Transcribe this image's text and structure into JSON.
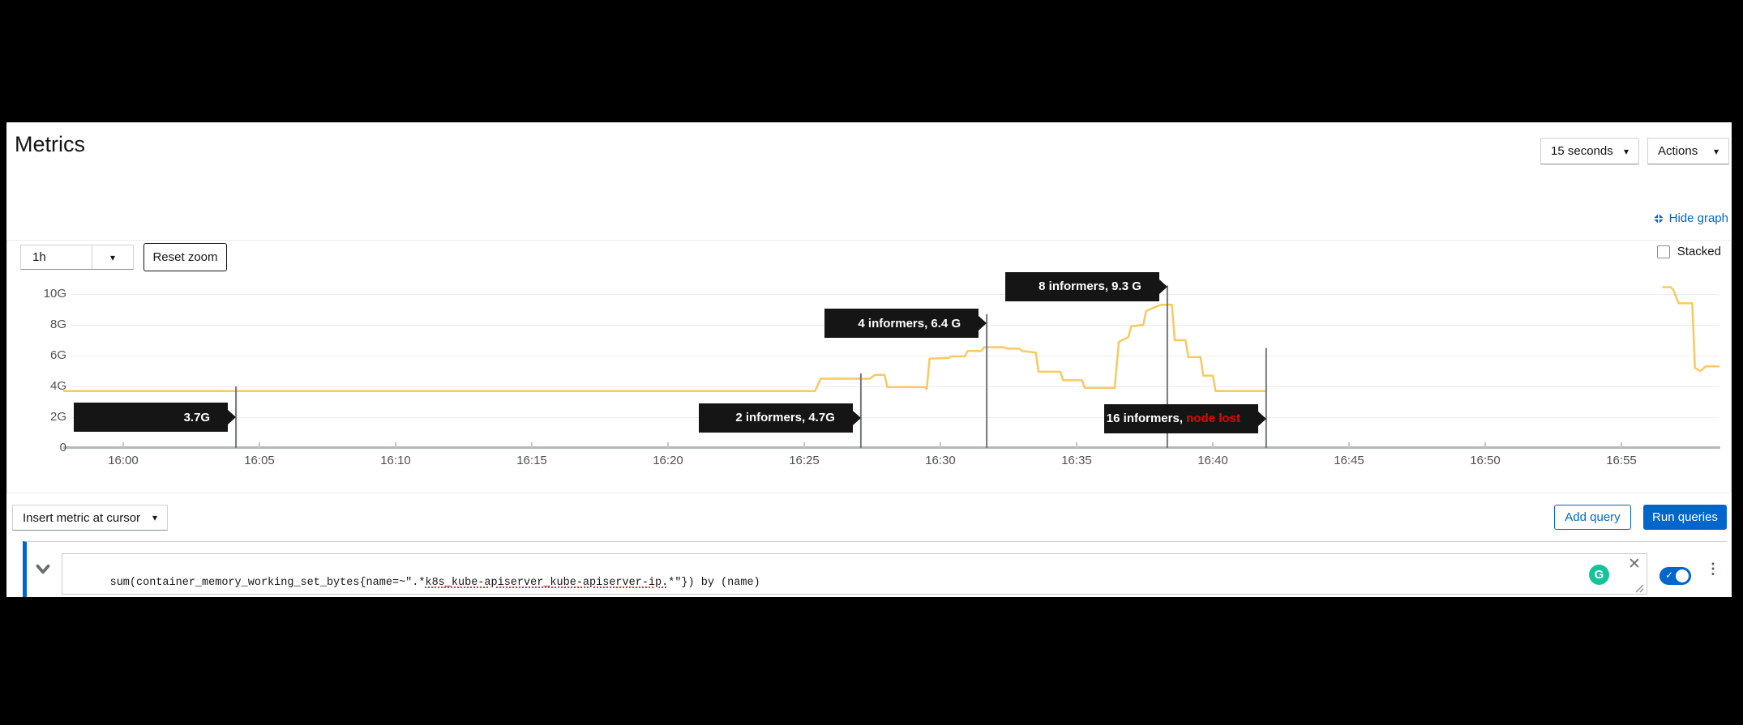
{
  "header": {
    "title": "Metrics",
    "interval_select": "15 seconds",
    "actions_label": "Actions"
  },
  "graph_controls": {
    "hide_graph": "Hide graph",
    "timespan": "1h",
    "reset_zoom": "Reset zoom",
    "stacked_label": "Stacked"
  },
  "chart_data": {
    "type": "line",
    "title": "",
    "xlabel": "",
    "ylabel": "",
    "x_unit": "time (HH:MM)",
    "y_unit": "memory working set (G)",
    "ylim": [
      0,
      11
    ],
    "grid": true,
    "legend": false,
    "x_ticks": [
      "16:00",
      "16:05",
      "16:10",
      "16:15",
      "16:20",
      "16:25",
      "16:30",
      "16:35",
      "16:40",
      "16:45",
      "16:50",
      "16:55"
    ],
    "y_ticks": [
      "0",
      "2G",
      "4G",
      "6G",
      "8G",
      "10G"
    ],
    "series": [
      {
        "name": "sum(container_memory_working_set_bytes) by (name)",
        "color": "#f4c145",
        "note": "t = minutes after 16:00, v = gigabytes; gap between segments = node lost",
        "segments": [
          [
            [
              -2.2,
              3.7
            ],
            [
              25.4,
              3.7
            ],
            [
              25.6,
              4.5
            ],
            [
              27.4,
              4.5
            ],
            [
              27.6,
              4.75
            ],
            [
              27.95,
              4.75
            ],
            [
              28.05,
              3.95
            ],
            [
              29.4,
              3.95
            ],
            [
              29.5,
              3.85
            ],
            [
              29.6,
              5.8
            ],
            [
              30.3,
              5.85
            ],
            [
              30.4,
              5.95
            ],
            [
              30.9,
              5.95
            ],
            [
              31.0,
              6.3
            ],
            [
              31.5,
              6.3
            ],
            [
              31.6,
              6.55
            ],
            [
              32.3,
              6.55
            ],
            [
              32.45,
              6.45
            ],
            [
              32.9,
              6.45
            ],
            [
              33.0,
              6.3
            ],
            [
              33.5,
              6.2
            ],
            [
              33.6,
              4.95
            ],
            [
              34.4,
              4.95
            ],
            [
              34.5,
              4.4
            ],
            [
              35.2,
              4.4
            ],
            [
              35.3,
              3.9
            ],
            [
              36.4,
              3.9
            ],
            [
              36.55,
              6.9
            ],
            [
              36.9,
              7.2
            ],
            [
              37.0,
              7.9
            ],
            [
              37.45,
              8.0
            ],
            [
              37.55,
              8.9
            ],
            [
              37.95,
              9.2
            ],
            [
              38.1,
              9.3
            ],
            [
              38.5,
              9.3
            ],
            [
              38.6,
              7.0
            ],
            [
              39.0,
              7.0
            ],
            [
              39.1,
              5.9
            ],
            [
              39.55,
              5.9
            ],
            [
              39.65,
              4.7
            ],
            [
              40.0,
              4.7
            ],
            [
              40.1,
              3.7
            ],
            [
              41.95,
              3.7
            ]
          ],
          [
            [
              56.5,
              10.45
            ],
            [
              56.8,
              10.45
            ],
            [
              56.9,
              10.3
            ],
            [
              57.1,
              9.4
            ],
            [
              57.6,
              9.4
            ],
            [
              57.7,
              5.2
            ],
            [
              57.9,
              5.0
            ],
            [
              58.1,
              5.3
            ],
            [
              58.6,
              5.3
            ]
          ]
        ]
      }
    ],
    "annotations": [
      {
        "t": 4.14,
        "line_top_g": 4.0,
        "box_center_g": 2.0,
        "parts": [
          {
            "text": "3.7G"
          }
        ]
      },
      {
        "t": 27.08,
        "line_top_g": 4.85,
        "box_center_g": 1.95,
        "parts": [
          {
            "text": "2 informers, 4.7G"
          }
        ]
      },
      {
        "t": 31.7,
        "line_top_g": 8.7,
        "box_center_g": 8.1,
        "parts": [
          {
            "text": "4 informers, 6.4 G"
          }
        ]
      },
      {
        "t": 38.33,
        "line_top_g": 10.55,
        "box_center_g": 10.5,
        "parts": [
          {
            "text": "8 informers, 9.3 G"
          }
        ]
      },
      {
        "t": 41.96,
        "line_top_g": 6.5,
        "box_center_g": 1.9,
        "parts": [
          {
            "text": "16 informers, "
          },
          {
            "text": "node lost",
            "color": "#ee0000"
          }
        ]
      }
    ]
  },
  "query_section": {
    "insert_metric": "Insert metric at cursor",
    "add_query": "Add query",
    "run_queries": "Run queries",
    "query": {
      "pre": "sum(container_memory_working_set_bytes{name=~\".*",
      "misspelled": "k8s_kube-apiserver_kube-apiserver-ip.",
      "post": "*\"}) by (name)"
    }
  },
  "icons": {
    "caret_down": "▾",
    "close": "✕",
    "kebab": "⋮",
    "check": "✓",
    "grammarly_g": "G"
  },
  "colors": {
    "accent_blue": "#0066cc",
    "line_gold": "#f4c145",
    "annotation_bg": "#151515",
    "node_lost_red": "#ee0000",
    "toggle_on": "#0066cc",
    "grammarly_green": "#15c39a"
  }
}
